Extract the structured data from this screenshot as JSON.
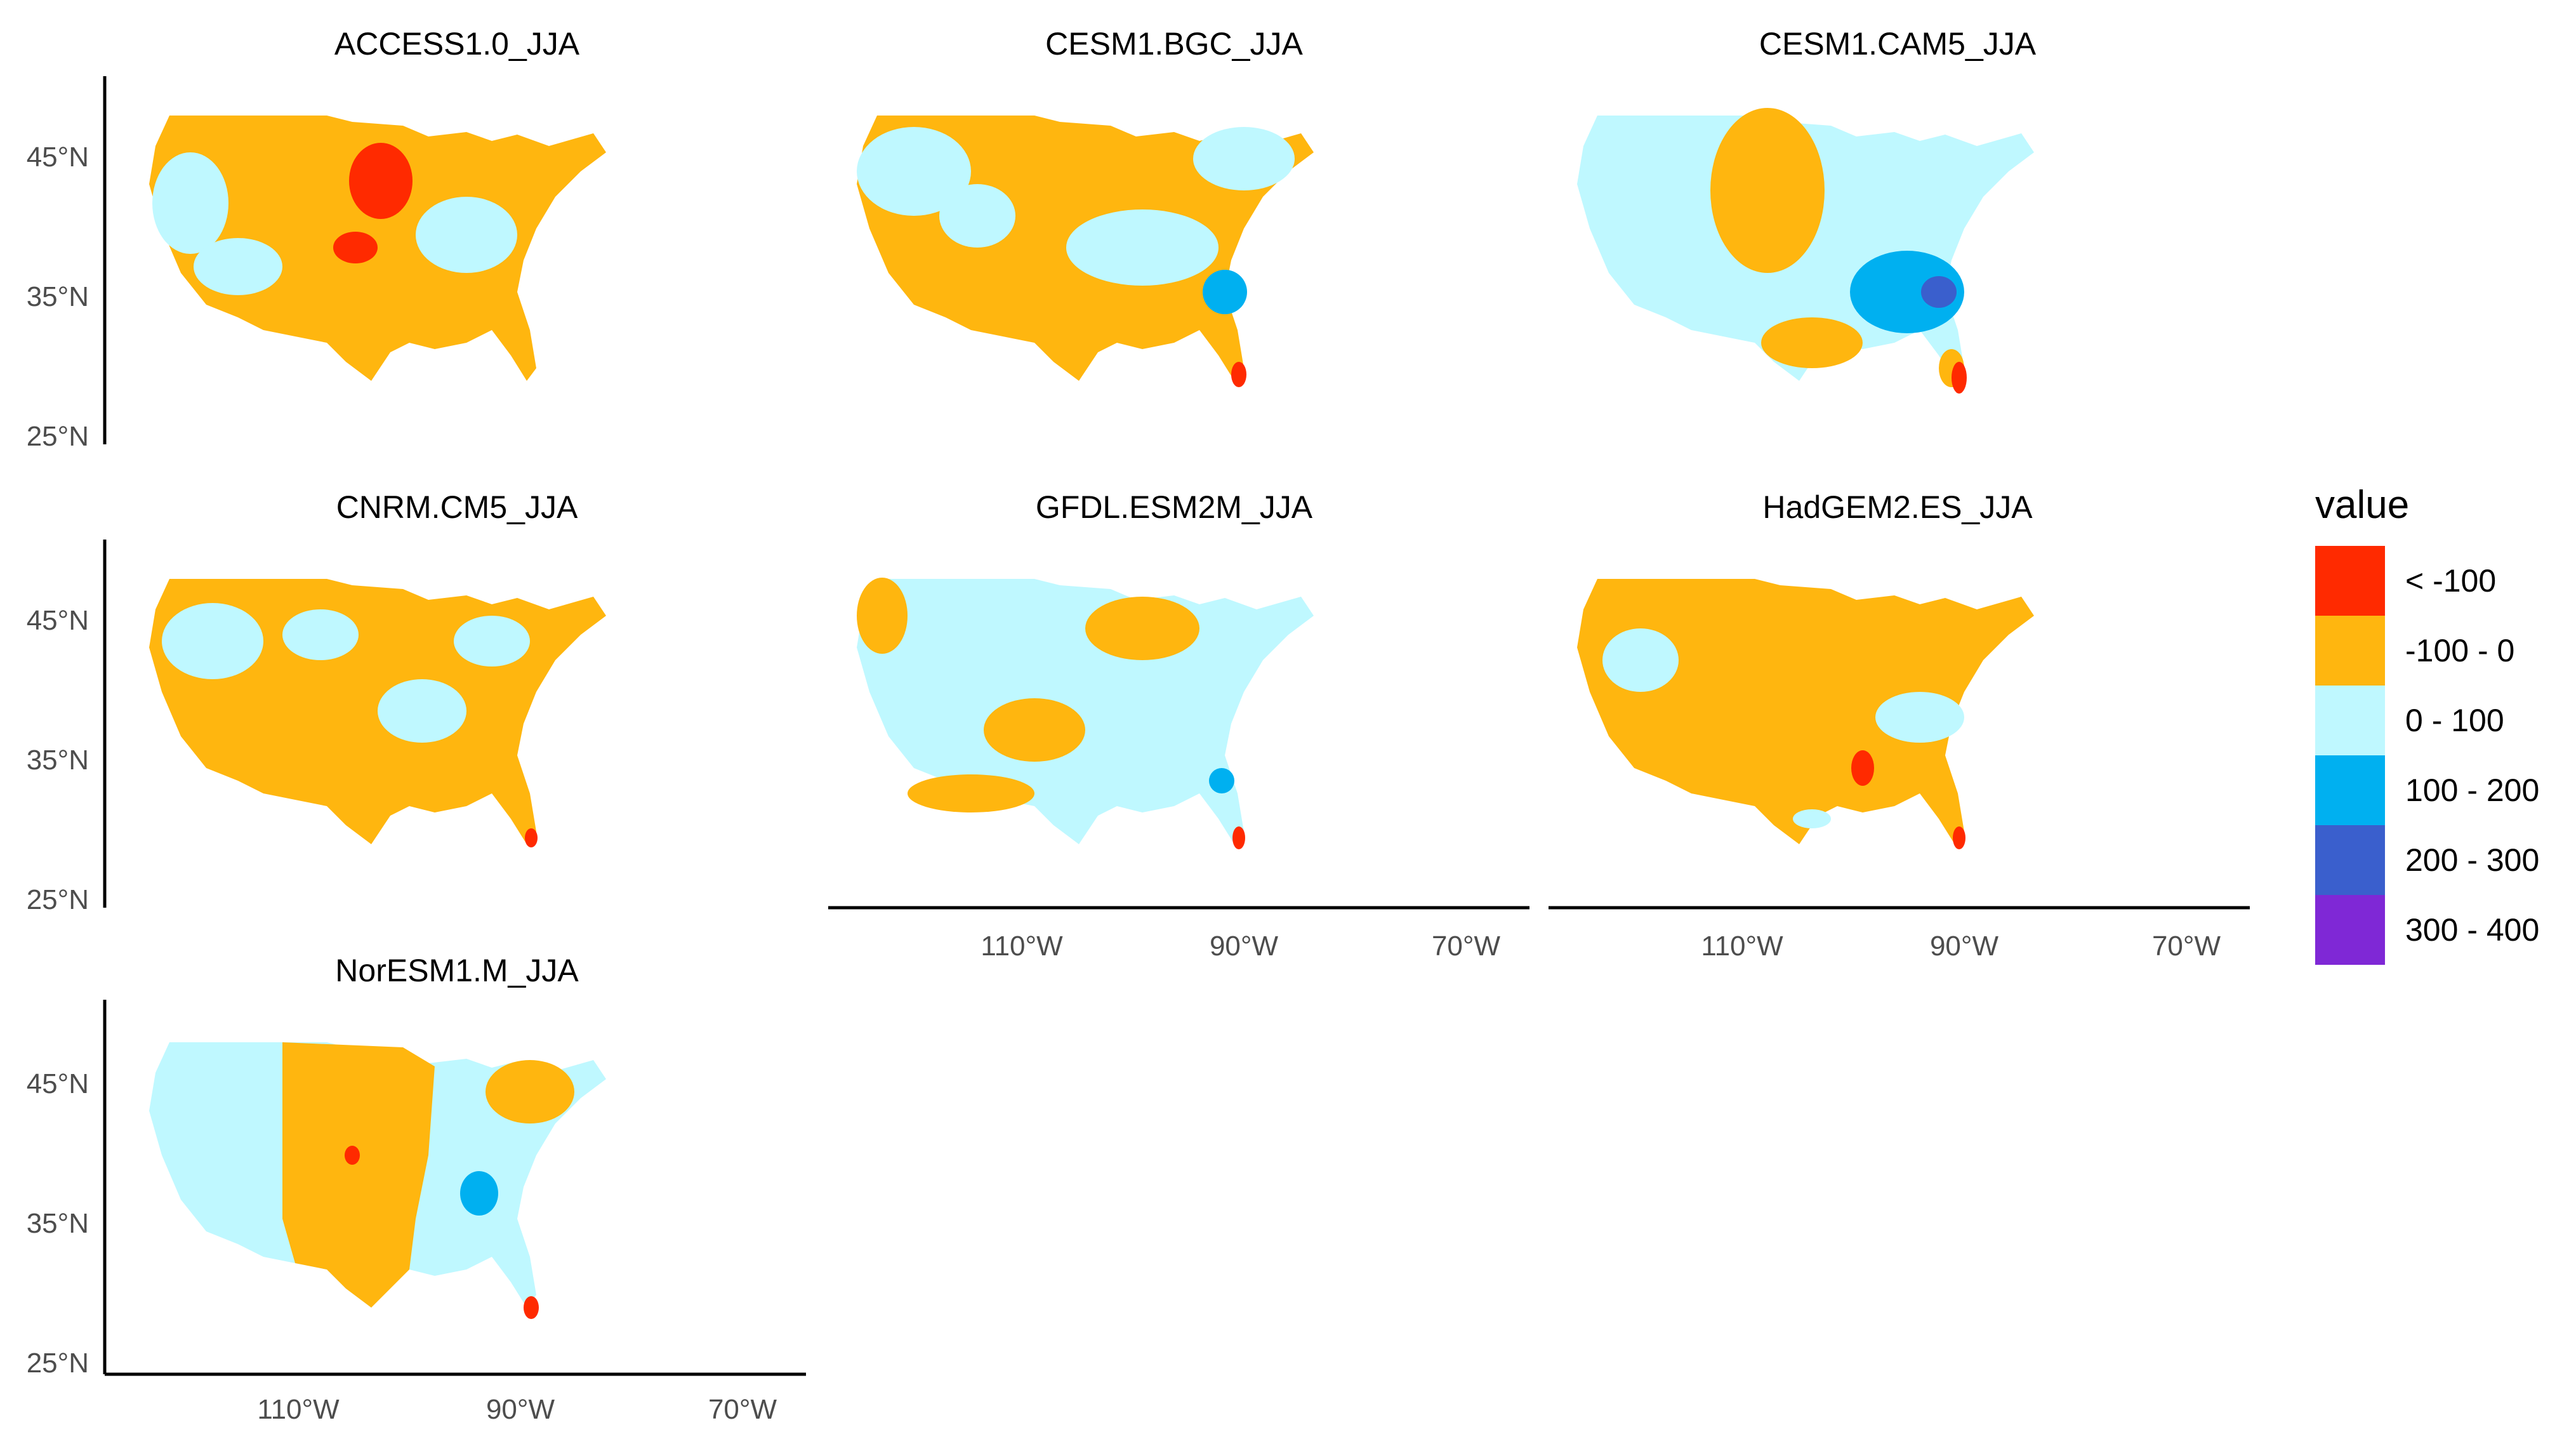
{
  "legend": {
    "title": "value",
    "items": [
      {
        "label": "< -100",
        "color": "#ff2a00"
      },
      {
        "label": "-100 - 0",
        "color": "#ffb60f"
      },
      {
        "label": "0 - 100",
        "color": "#bff8ff"
      },
      {
        "label": "100 - 200",
        "color": "#00b0f0"
      },
      {
        "label": "200 - 300",
        "color": "#3a5fcd"
      },
      {
        "label": "300 - 400",
        "color": "#7f28d6"
      }
    ]
  },
  "axes": {
    "y_ticks": [
      "45°N",
      "35°N",
      "25°N"
    ],
    "x_ticks": [
      "110°W",
      "90°W",
      "70°W"
    ]
  },
  "panels": [
    {
      "title": "ACCESS1.0_JJA",
      "dominant": "-100 - 0",
      "hotspots": [
        "< -100"
      ]
    },
    {
      "title": "CESM1.BGC_JJA",
      "dominant": "-100 - 0",
      "hotspots": [
        "100 - 200",
        "< -100"
      ]
    },
    {
      "title": "CESM1.CAM5_JJA",
      "dominant": "0 - 100",
      "hotspots": [
        "100 - 200",
        "200 - 300",
        "< -100"
      ]
    },
    {
      "title": "CNRM.CM5_JJA",
      "dominant": "-100 - 0",
      "hotspots": [
        "< -100"
      ]
    },
    {
      "title": "GFDL.ESM2M_JJA",
      "dominant": "0 - 100",
      "hotspots": [
        "100 - 200",
        "< -100"
      ]
    },
    {
      "title": "HadGEM2.ES_JJA",
      "dominant": "-100 - 0",
      "hotspots": [
        "< -100"
      ]
    },
    {
      "title": "NorESM1.M_JJA",
      "dominant": "0 - 100",
      "hotspots": [
        "< -100",
        "100 - 200"
      ]
    }
  ]
}
